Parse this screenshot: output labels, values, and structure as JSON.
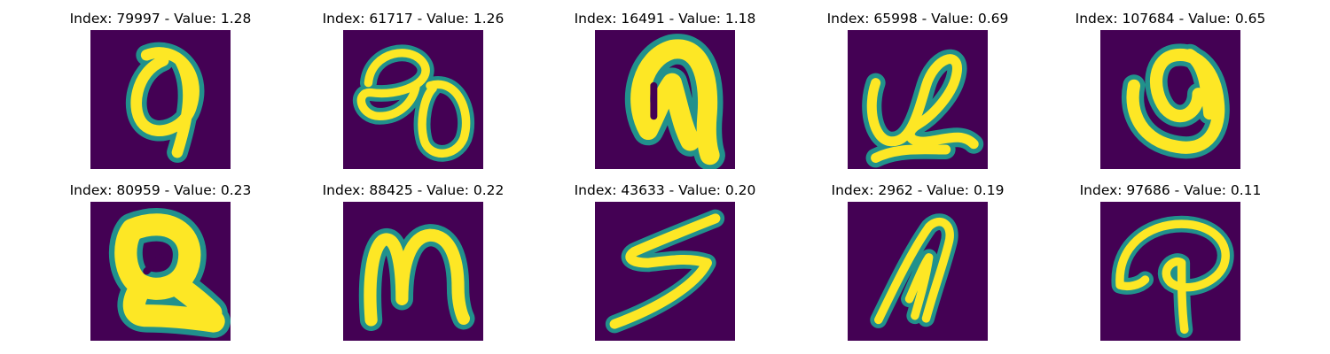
{
  "colors": {
    "background": "#440154",
    "stroke_mid": "#21918c",
    "stroke_high": "#fde725"
  },
  "figure": {
    "panels": [
      {
        "title": "Index: 79997 - Value: 1.28",
        "index": 79997,
        "value": 1.28,
        "glyph": "loop-with-tail"
      },
      {
        "title": "Index: 61717 - Value: 1.26",
        "index": 61717,
        "value": 1.26,
        "glyph": "double-loop"
      },
      {
        "title": "Index: 16491 - Value: 1.18",
        "index": 16491,
        "value": 1.18,
        "glyph": "filled-arch"
      },
      {
        "title": "Index: 65998 - Value: 0.69",
        "index": 65998,
        "value": 0.69,
        "glyph": "curl-with-base"
      },
      {
        "title": "Index: 107684 - Value: 0.65",
        "index": 107684,
        "value": 0.65,
        "glyph": "curled-loop"
      },
      {
        "title": "Index: 80959 - Value: 0.23",
        "index": 80959,
        "value": 0.23,
        "glyph": "blob-with-hole"
      },
      {
        "title": "Index: 88425 - Value: 0.22",
        "index": 88425,
        "value": 0.22,
        "glyph": "letter-m"
      },
      {
        "title": "Index: 43633 - Value: 0.20",
        "index": 43633,
        "value": 0.2,
        "glyph": "zigzag-s"
      },
      {
        "title": "Index: 2962 - Value: 0.19",
        "index": 2962,
        "value": 0.19,
        "glyph": "narrow-loops"
      },
      {
        "title": "Index: 97686 - Value: 0.11",
        "index": 97686,
        "value": 0.11,
        "glyph": "letter-p-curl"
      }
    ]
  }
}
